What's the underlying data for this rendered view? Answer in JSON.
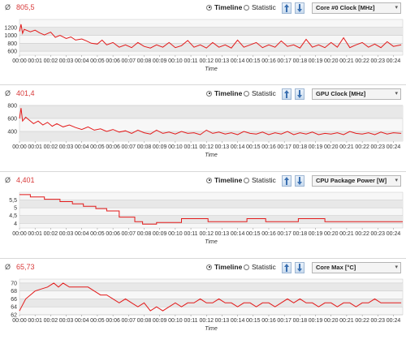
{
  "panels": [
    {
      "avg_symbol": "Ø",
      "avg_value": "805,5",
      "mode_timeline": "Timeline",
      "mode_statistic": "Statistic",
      "sensor": "Core #0 Clock [MHz]"
    },
    {
      "avg_symbol": "Ø",
      "avg_value": "401,4",
      "mode_timeline": "Timeline",
      "mode_statistic": "Statistic",
      "sensor": "GPU Clock [MHz]"
    },
    {
      "avg_symbol": "Ø",
      "avg_value": "4,401",
      "mode_timeline": "Timeline",
      "mode_statistic": "Statistic",
      "sensor": "CPU Package Power [W]"
    },
    {
      "avg_symbol": "Ø",
      "avg_value": "65,73",
      "mode_timeline": "Timeline",
      "mode_statistic": "Statistic",
      "sensor": "Core Max [°C]"
    }
  ],
  "chart_data": [
    {
      "type": "line",
      "xlabel": "Time",
      "ylabel": "",
      "ylim": [
        500,
        1400
      ],
      "yticks": [
        "600",
        "800",
        "1000",
        "1200"
      ],
      "ytick_values": [
        600,
        800,
        1000,
        1200
      ],
      "x_tick_labels": [
        "00:00",
        "00:01",
        "00:02",
        "00:03",
        "00:04",
        "00:05",
        "00:06",
        "00:07",
        "00:08",
        "00:09",
        "00:10",
        "00:11",
        "00:12",
        "00:13",
        "00:14",
        "00:15",
        "00:16",
        "00:17",
        "00:18",
        "00:19",
        "00:20",
        "00:21",
        "00:22",
        "00:23",
        "00:24"
      ],
      "xlim_minutes": [
        0,
        24.6
      ],
      "color": "#e31a1a",
      "series": [
        {
          "x": [
            0,
            0.1,
            0.2,
            0.3,
            0.5,
            0.7,
            1,
            1.3,
            1.6,
            2,
            2.3,
            2.6,
            3,
            3.3,
            3.6,
            4,
            4.3,
            4.6,
            5,
            5.3,
            5.6,
            6,
            6.4,
            6.8,
            7.2,
            7.6,
            8,
            8.4,
            8.8,
            9.2,
            9.6,
            10,
            10.4,
            10.8,
            11.2,
            11.6,
            12,
            12.4,
            12.8,
            13.2,
            13.6,
            14,
            14.4,
            14.8,
            15.2,
            15.6,
            16,
            16.4,
            16.8,
            17.2,
            17.6,
            18,
            18.4,
            18.8,
            19.2,
            19.6,
            20,
            20.4,
            20.8,
            21.2,
            21.6,
            22,
            22.4,
            22.8,
            23.2,
            23.6,
            24,
            24.5
          ],
          "y": [
            1100,
            1280,
            1050,
            1150,
            1120,
            1090,
            1130,
            1060,
            1010,
            1080,
            950,
            1000,
            920,
            960,
            880,
            910,
            860,
            800,
            780,
            880,
            760,
            820,
            700,
            760,
            690,
            820,
            720,
            680,
            760,
            700,
            820,
            690,
            740,
            870,
            700,
            760,
            680,
            820,
            700,
            760,
            680,
            880,
            700,
            760,
            820,
            690,
            760,
            700,
            860,
            720,
            760,
            680,
            900,
            700,
            760,
            690,
            820,
            700,
            940,
            690,
            760,
            820,
            700,
            780,
            690,
            840,
            720,
            760
          ]
        }
      ]
    },
    {
      "type": "line",
      "xlabel": "Time",
      "ylabel": "",
      "ylim": [
        250,
        800
      ],
      "yticks": [
        "400",
        "600",
        "800"
      ],
      "ytick_values": [
        400,
        600,
        800
      ],
      "x_tick_labels": [
        "00:00",
        "00:01",
        "00:02",
        "00:03",
        "00:04",
        "00:05",
        "00:06",
        "00:07",
        "00:08",
        "00:09",
        "00:10",
        "00:11",
        "00:12",
        "00:13",
        "00:14",
        "00:15",
        "00:16",
        "00:17",
        "00:18",
        "00:19",
        "00:20",
        "00:21",
        "00:22",
        "00:23",
        "00:24"
      ],
      "xlim_minutes": [
        0,
        24.6
      ],
      "color": "#e31a1a",
      "series": [
        {
          "x": [
            0,
            0.1,
            0.2,
            0.4,
            0.6,
            0.9,
            1.2,
            1.5,
            1.8,
            2.1,
            2.4,
            2.8,
            3.2,
            3.6,
            4,
            4.4,
            4.8,
            5.2,
            5.6,
            6,
            6.4,
            6.8,
            7.2,
            7.6,
            8,
            8.4,
            8.8,
            9.2,
            9.6,
            10,
            10.4,
            10.8,
            11.2,
            11.6,
            12,
            12.4,
            12.8,
            13.2,
            13.6,
            14,
            14.4,
            14.8,
            15.2,
            15.6,
            16,
            16.4,
            16.8,
            17.2,
            17.6,
            18,
            18.4,
            18.8,
            19.2,
            19.6,
            20,
            20.4,
            20.8,
            21.2,
            21.6,
            22,
            22.4,
            22.8,
            23.2,
            23.6,
            24,
            24.5
          ],
          "y": [
            600,
            760,
            560,
            620,
            580,
            520,
            560,
            500,
            540,
            480,
            520,
            470,
            500,
            460,
            430,
            470,
            420,
            440,
            400,
            430,
            390,
            410,
            370,
            420,
            380,
            360,
            420,
            370,
            390,
            360,
            400,
            370,
            380,
            350,
            420,
            370,
            390,
            360,
            380,
            350,
            400,
            370,
            360,
            390,
            350,
            380,
            360,
            400,
            350,
            380,
            360,
            390,
            350,
            370,
            360,
            380,
            350,
            400,
            370,
            360,
            380,
            350,
            390,
            360,
            380,
            370
          ]
        }
      ]
    },
    {
      "type": "line",
      "xlabel": "Time",
      "ylabel": "",
      "ylim": [
        3.7,
        6.0
      ],
      "yticks": [
        "4",
        "4,5",
        "5",
        "5,5"
      ],
      "ytick_values": [
        4,
        4.5,
        5,
        5.5
      ],
      "x_tick_labels": [
        "00:00",
        "00:01",
        "00:02",
        "00:03",
        "00:04",
        "00:05",
        "00:06",
        "00:07",
        "00:08",
        "00:09",
        "00:10",
        "00:11",
        "00:12",
        "00:13",
        "00:14",
        "00:15",
        "00:16",
        "00:17",
        "00:18",
        "00:19",
        "00:20",
        "00:21",
        "00:22",
        "00:23",
        "00:24"
      ],
      "xlim_minutes": [
        0,
        24.6
      ],
      "color": "#e31a1a",
      "series": [
        {
          "x": [
            0,
            0.7,
            0.7,
            1.6,
            1.6,
            2.6,
            2.6,
            3.4,
            3.4,
            4.1,
            4.1,
            4.9,
            4.9,
            5.6,
            5.6,
            6.4,
            6.4,
            7.4,
            7.4,
            7.9,
            7.9,
            8.8,
            8.8,
            10.4,
            10.4,
            12.1,
            12.1,
            14.6,
            14.6,
            15.8,
            15.8,
            17.9,
            17.9,
            19.6,
            19.6,
            24.6
          ],
          "y": [
            5.85,
            5.85,
            5.7,
            5.7,
            5.55,
            5.55,
            5.4,
            5.4,
            5.25,
            5.25,
            5.1,
            5.1,
            4.95,
            4.95,
            4.8,
            4.8,
            4.4,
            4.4,
            4.1,
            4.1,
            3.95,
            3.95,
            4.05,
            4.05,
            4.3,
            4.3,
            4.1,
            4.1,
            4.3,
            4.3,
            4.1,
            4.1,
            4.3,
            4.3,
            4.1,
            4.1
          ]
        }
      ]
    },
    {
      "type": "line",
      "xlabel": "Time",
      "ylabel": "",
      "ylim": [
        62,
        71
      ],
      "yticks": [
        "62",
        "64",
        "66",
        "68",
        "70"
      ],
      "ytick_values": [
        62,
        64,
        66,
        68,
        70
      ],
      "x_tick_labels": [
        "00:00",
        "00:01",
        "00:02",
        "00:03",
        "00:04",
        "00:05",
        "00:06",
        "00:07",
        "00:08",
        "00:09",
        "00:10",
        "00:11",
        "00:12",
        "00:13",
        "00:14",
        "00:15",
        "00:16",
        "00:17",
        "00:18",
        "00:19",
        "00:20",
        "00:21",
        "00:22",
        "00:23",
        "00:24"
      ],
      "xlim_minutes": [
        0,
        24.6
      ],
      "color": "#e31a1a",
      "series": [
        {
          "x": [
            0,
            0.2,
            0.4,
            0.7,
            1,
            1.4,
            1.8,
            2.2,
            2.5,
            2.8,
            3.2,
            3.6,
            4,
            4.4,
            4.8,
            5.2,
            5.6,
            6,
            6.4,
            6.8,
            7.2,
            7.6,
            8,
            8.4,
            8.8,
            9.2,
            9.6,
            10,
            10.4,
            10.8,
            11.2,
            11.6,
            12,
            12.4,
            12.8,
            13.2,
            13.6,
            14,
            14.4,
            14.8,
            15.2,
            15.6,
            16,
            16.4,
            16.8,
            17.2,
            17.6,
            18,
            18.4,
            18.8,
            19.2,
            19.6,
            20,
            20.4,
            20.8,
            21.2,
            21.6,
            22,
            22.4,
            22.8,
            23.2,
            23.6,
            24,
            24.5
          ],
          "y": [
            63,
            64.5,
            66,
            67,
            68,
            68.5,
            69,
            70,
            69,
            70,
            69,
            69,
            69,
            69,
            68,
            67,
            67,
            66,
            65,
            66,
            65,
            64,
            65,
            63,
            64,
            63,
            64,
            65,
            64,
            65,
            65,
            66,
            65,
            65,
            66,
            65,
            65,
            64,
            65,
            65,
            64,
            65,
            65,
            64,
            65,
            66,
            65,
            66,
            65,
            65,
            64,
            65,
            65,
            64,
            65,
            65,
            64,
            65,
            65,
            66,
            65,
            65,
            65,
            65
          ]
        }
      ]
    }
  ]
}
